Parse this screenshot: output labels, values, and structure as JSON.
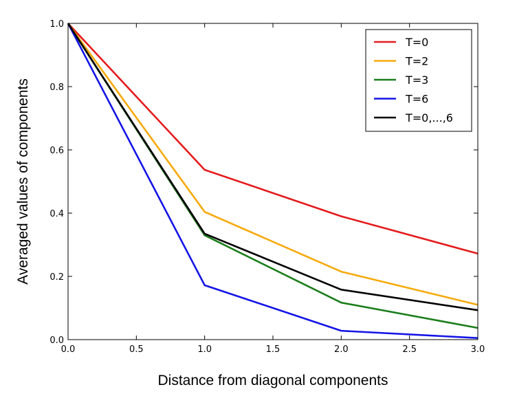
{
  "chart_data": {
    "type": "line",
    "title": "",
    "xlabel": "Distance from diagonal components",
    "ylabel": "Averaged values of components",
    "xlim": [
      0,
      3
    ],
    "ylim": [
      0,
      1
    ],
    "grid": false,
    "legend_position": "top-right",
    "x": [
      0,
      1,
      2,
      3
    ],
    "xticks": [
      "0.0",
      "0.5",
      "1.0",
      "1.5",
      "2.0",
      "2.5",
      "3.0"
    ],
    "yticks": [
      "0.0",
      "0.2",
      "0.4",
      "0.6",
      "0.8",
      "1.0"
    ],
    "series": [
      {
        "name": "T=0",
        "color": "#e41a1c",
        "values": [
          1.0,
          0.537,
          0.39,
          0.272
        ]
      },
      {
        "name": "T=2",
        "color": "#f7a90a",
        "values": [
          1.0,
          0.404,
          0.215,
          0.11
        ]
      },
      {
        "name": "T=3",
        "color": "#1b7d1b",
        "values": [
          1.0,
          0.33,
          0.117,
          0.037
        ]
      },
      {
        "name": "T=6",
        "color": "#1414e6",
        "values": [
          1.0,
          0.172,
          0.028,
          0.005
        ]
      },
      {
        "name": "T=0,...,6",
        "color": "#000000",
        "values": [
          1.0,
          0.335,
          0.158,
          0.093
        ]
      }
    ]
  }
}
